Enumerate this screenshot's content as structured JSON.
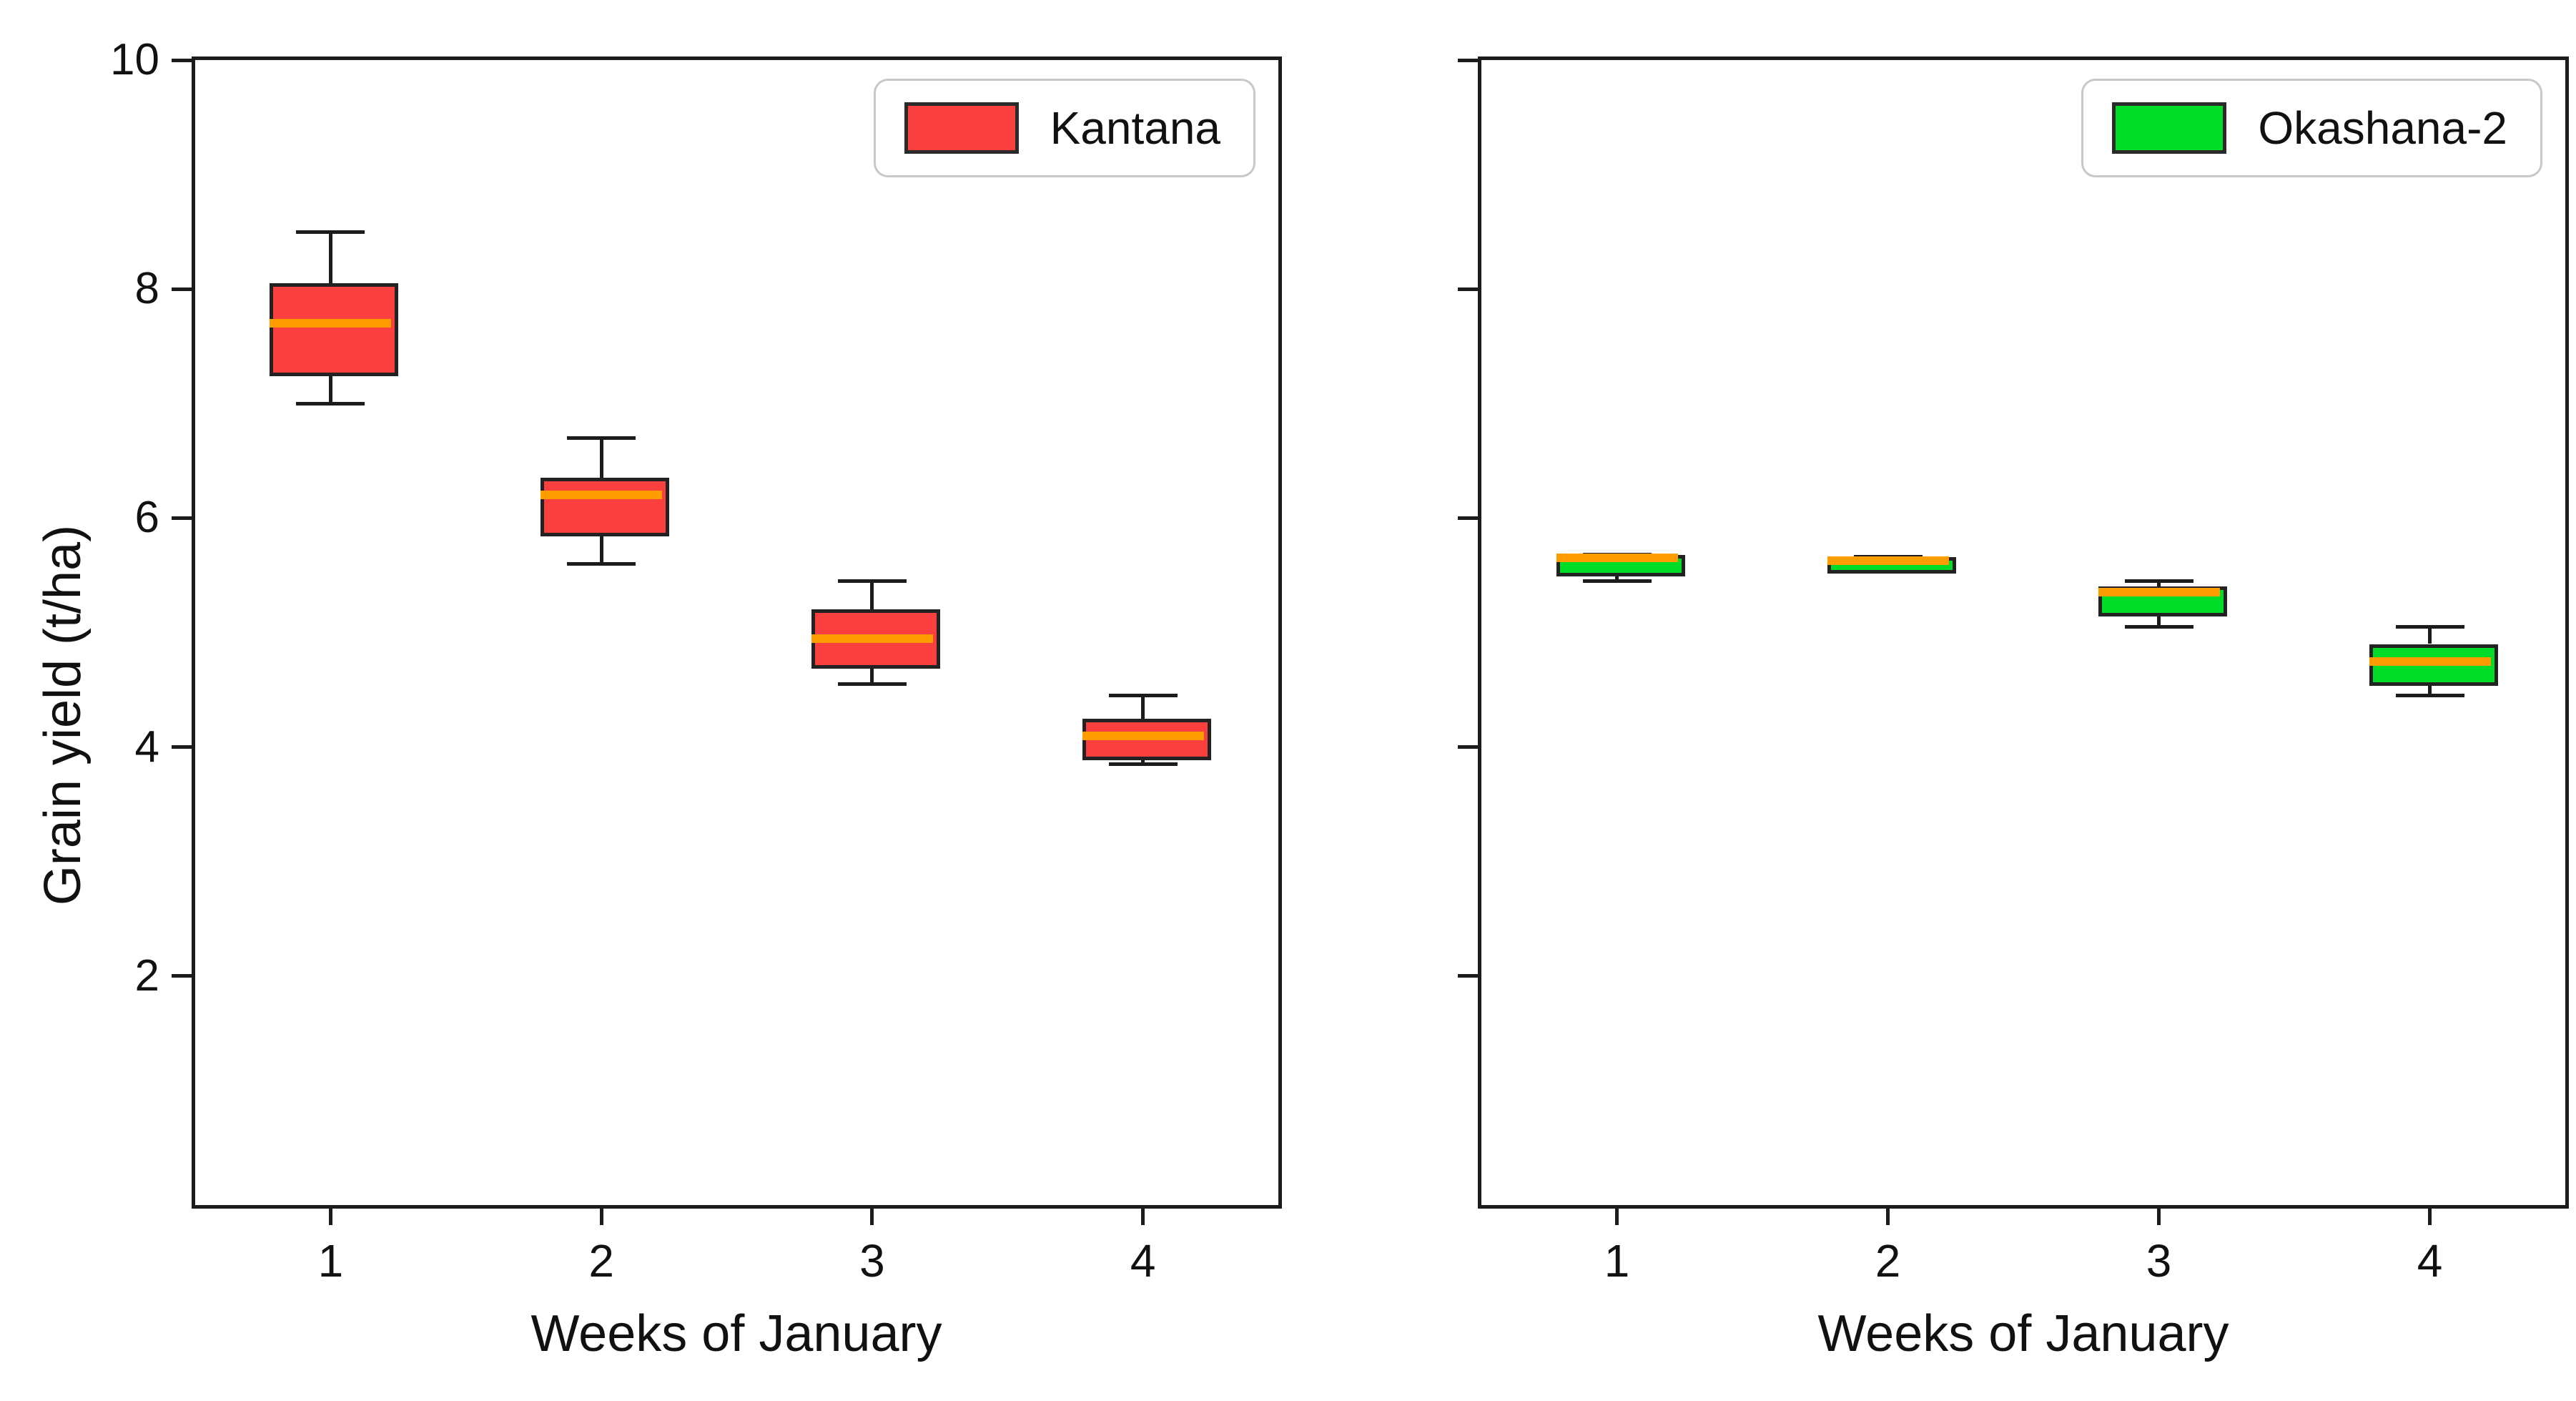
{
  "figure": {
    "ylabel": "Grain yield (t/ha)",
    "background_color": "#ffffff",
    "axis_color": "#1c1c1c",
    "median_color": "#FF9D00"
  },
  "chart_data": [
    {
      "type": "boxplot",
      "panel": "left",
      "xlabel": "Weeks of January",
      "ylabel": "Grain yield (t/ha)",
      "legend": {
        "label": "Kantana",
        "color": "#FA3F3F",
        "position": "upper right"
      },
      "categories": [
        1,
        2,
        3,
        4
      ],
      "x_tick_labels": [
        "1",
        "2",
        "3",
        "4"
      ],
      "xlim": [
        0.5,
        4.5
      ],
      "ylim": [
        0,
        10
      ],
      "yticks": [
        2,
        4,
        6,
        8,
        10
      ],
      "y_tick_labels": [
        "2",
        "4",
        "6",
        "8",
        "10"
      ],
      "y_tick_labels_visible": true,
      "grid": false,
      "box_fill_color": "#FA3F3F",
      "median_color": "#FF9D00",
      "series": [
        {
          "name": "Kantana",
          "boxes": [
            {
              "week": 1,
              "min": 7.0,
              "q1": 7.3,
              "median": 7.7,
              "q3": 8.05,
              "max": 8.5
            },
            {
              "week": 2,
              "min": 5.6,
              "q1": 5.9,
              "median": 6.2,
              "q3": 6.35,
              "max": 6.7
            },
            {
              "week": 3,
              "min": 4.55,
              "q1": 4.75,
              "median": 4.95,
              "q3": 5.2,
              "max": 5.45
            },
            {
              "week": 4,
              "min": 3.85,
              "q1": 3.95,
              "median": 4.1,
              "q3": 4.25,
              "max": 4.45
            }
          ]
        }
      ]
    },
    {
      "type": "boxplot",
      "panel": "right",
      "xlabel": "Weeks of January",
      "ylabel": "",
      "legend": {
        "label": "Okashana-2",
        "color": "#00DC28",
        "position": "upper right"
      },
      "categories": [
        1,
        2,
        3,
        4
      ],
      "x_tick_labels": [
        "1",
        "2",
        "3",
        "4"
      ],
      "xlim": [
        0.5,
        4.5
      ],
      "ylim": [
        0,
        10
      ],
      "yticks": [
        2,
        4,
        6,
        8,
        10
      ],
      "y_tick_labels": [],
      "y_tick_labels_visible": false,
      "grid": false,
      "box_fill_color": "#00DC28",
      "median_color": "#FF9D00",
      "series": [
        {
          "name": "Okashana-2",
          "boxes": [
            {
              "week": 1,
              "min": 5.45,
              "q1": 5.55,
              "median": 5.65,
              "q3": 5.68,
              "max": 5.68
            },
            {
              "week": 2,
              "min": 5.55,
              "q1": 5.58,
              "median": 5.63,
              "q3": 5.66,
              "max": 5.66
            },
            {
              "week": 3,
              "min": 5.05,
              "q1": 5.2,
              "median": 5.35,
              "q3": 5.4,
              "max": 5.45
            },
            {
              "week": 4,
              "min": 4.45,
              "q1": 4.6,
              "median": 4.75,
              "q3": 4.9,
              "max": 5.05
            }
          ]
        }
      ]
    }
  ]
}
